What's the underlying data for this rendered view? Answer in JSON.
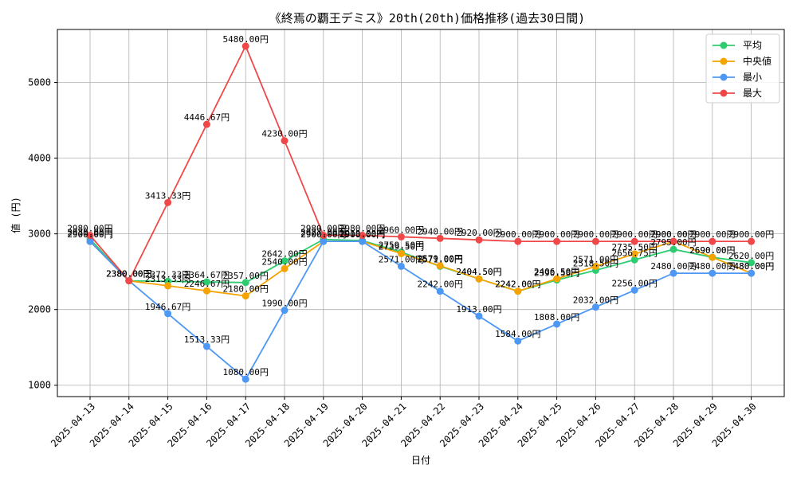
{
  "chart_data": {
    "type": "line",
    "title": "《終焉の覇王デミス》20th(20th)価格推移(過去30日間)",
    "xlabel": "日付",
    "ylabel": "値 (円)",
    "grid": true,
    "legend_position": "top-right",
    "ylim": [
      850,
      5700
    ],
    "yticks": [
      1000,
      2000,
      3000,
      4000,
      5000
    ],
    "categories": [
      "2025-04-13",
      "2025-04-14",
      "2025-04-15",
      "2025-04-16",
      "2025-04-17",
      "2025-04-18",
      "2025-04-19",
      "2025-04-20",
      "2025-04-21",
      "2025-04-22",
      "2025-04-23",
      "2025-04-24",
      "2025-04-25",
      "2025-04-26",
      "2025-04-27",
      "2025-04-28",
      "2025-04-29",
      "2025-04-30"
    ],
    "series": [
      {
        "name": "平均",
        "color": "#2ecc71",
        "values": [
          2930,
          2380,
          2372.33,
          2364.67,
          2357,
          2642,
          2927,
          2910,
          2759.5,
          2571,
          2404.5,
          2242,
          2390.5,
          2518.5,
          2656.75,
          2795,
          2690,
          2620
        ],
        "labels": [
          "2930.00円",
          "2380.00円",
          "2372.33円",
          "2364.67円",
          "2357.00円",
          "2642.00円",
          "2927.00円",
          "2910.00円",
          "2759.50円",
          "2571.00円",
          "2404.50円",
          "2242.00円",
          "2390.50円",
          "2518.50円",
          "2656.75円",
          "2795.00円",
          "2690.00円",
          "2620.00円"
        ]
      },
      {
        "name": "中央値",
        "color": "#f5a300",
        "values": [
          2900,
          2380,
          2313.33,
          2246.67,
          2180,
          2540,
          2900,
          2900,
          2739.5,
          2579,
          2404.5,
          2242,
          2406.5,
          2571,
          2735.5,
          2900,
          2690,
          2480
        ],
        "labels": [
          "2900.00円",
          "2380.00円",
          "2313.33円",
          "2246.67円",
          "2180.00円",
          "2540.00円",
          "2900.00円",
          "2900.00円",
          "2739.50円",
          "2579.00円",
          "2404.50円",
          "2242.00円",
          "2406.50円",
          "2571.00円",
          "2735.50円",
          "2900.00円",
          "2690.00円",
          "2480.00円"
        ]
      },
      {
        "name": "最小",
        "color": "#4d97f5",
        "values": [
          2900,
          2380,
          1946.67,
          1513.33,
          1080,
          1990,
          2900,
          2900,
          2571,
          2242,
          1913,
          1584,
          1808,
          2032,
          2256,
          2480,
          2480,
          2480
        ],
        "labels": [
          "2900.00円",
          "2380.00円",
          "1946.67円",
          "1513.33円",
          "1080.00円",
          "1990.00円",
          "2900.00円",
          "2900.00円",
          "2571.00円",
          "2242.00円",
          "1913.00円",
          "1584.00円",
          "1808.00円",
          "2032.00円",
          "2256.00円",
          "2480.00円",
          "2480.00円",
          "2480.00円"
        ]
      },
      {
        "name": "最大",
        "color": "#f04848",
        "values": [
          2980,
          2380,
          3413.33,
          4446.67,
          5480,
          4230,
          2980,
          2980,
          2960,
          2940,
          2920,
          2900,
          2900,
          2900,
          2900,
          2900,
          2900,
          2900
        ],
        "labels": [
          "2980.00円",
          "2380.00円",
          "3413.33円",
          "4446.67円",
          "5480.00円",
          "4230.00円",
          "2980.00円",
          "2980.00円",
          "2960.00円",
          "2940.00円",
          "2920.00円",
          "2900.00円",
          "2900.00円",
          "2900.00円",
          "2900.00円",
          "2900.00円",
          "2900.00円",
          "2900.00円"
        ]
      }
    ]
  }
}
